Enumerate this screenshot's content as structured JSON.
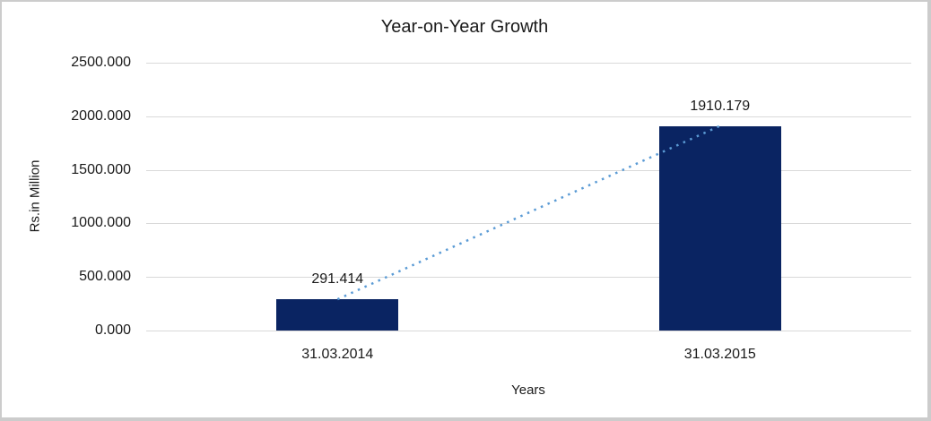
{
  "chart_data": {
    "type": "bar",
    "title": "Year-on-Year Growth",
    "xlabel": "Years",
    "ylabel": "Rs.in Million",
    "categories": [
      "31.03.2014",
      "31.03.2015"
    ],
    "values": [
      291.414,
      1910.179
    ],
    "data_labels": [
      "291.414",
      "1910.179"
    ],
    "ylim": [
      0,
      2500
    ],
    "yticks": [
      0,
      500,
      1000,
      1500,
      2000,
      2500
    ],
    "ytick_labels": [
      "0.000",
      "500.000",
      "1000.000",
      "1500.000",
      "2000.000",
      "2500.000"
    ],
    "grid": true,
    "legend": "none",
    "trendline": {
      "style": "dotted",
      "connects": [
        "31.03.2014",
        "31.03.2015"
      ]
    },
    "colors": {
      "bar": "#0a2462",
      "trendline": "#5b9bd5",
      "gridline": "#d9d9d9",
      "text": "#1a1a1a",
      "background": "#ffffff",
      "frame_border": "#cccccc"
    }
  }
}
